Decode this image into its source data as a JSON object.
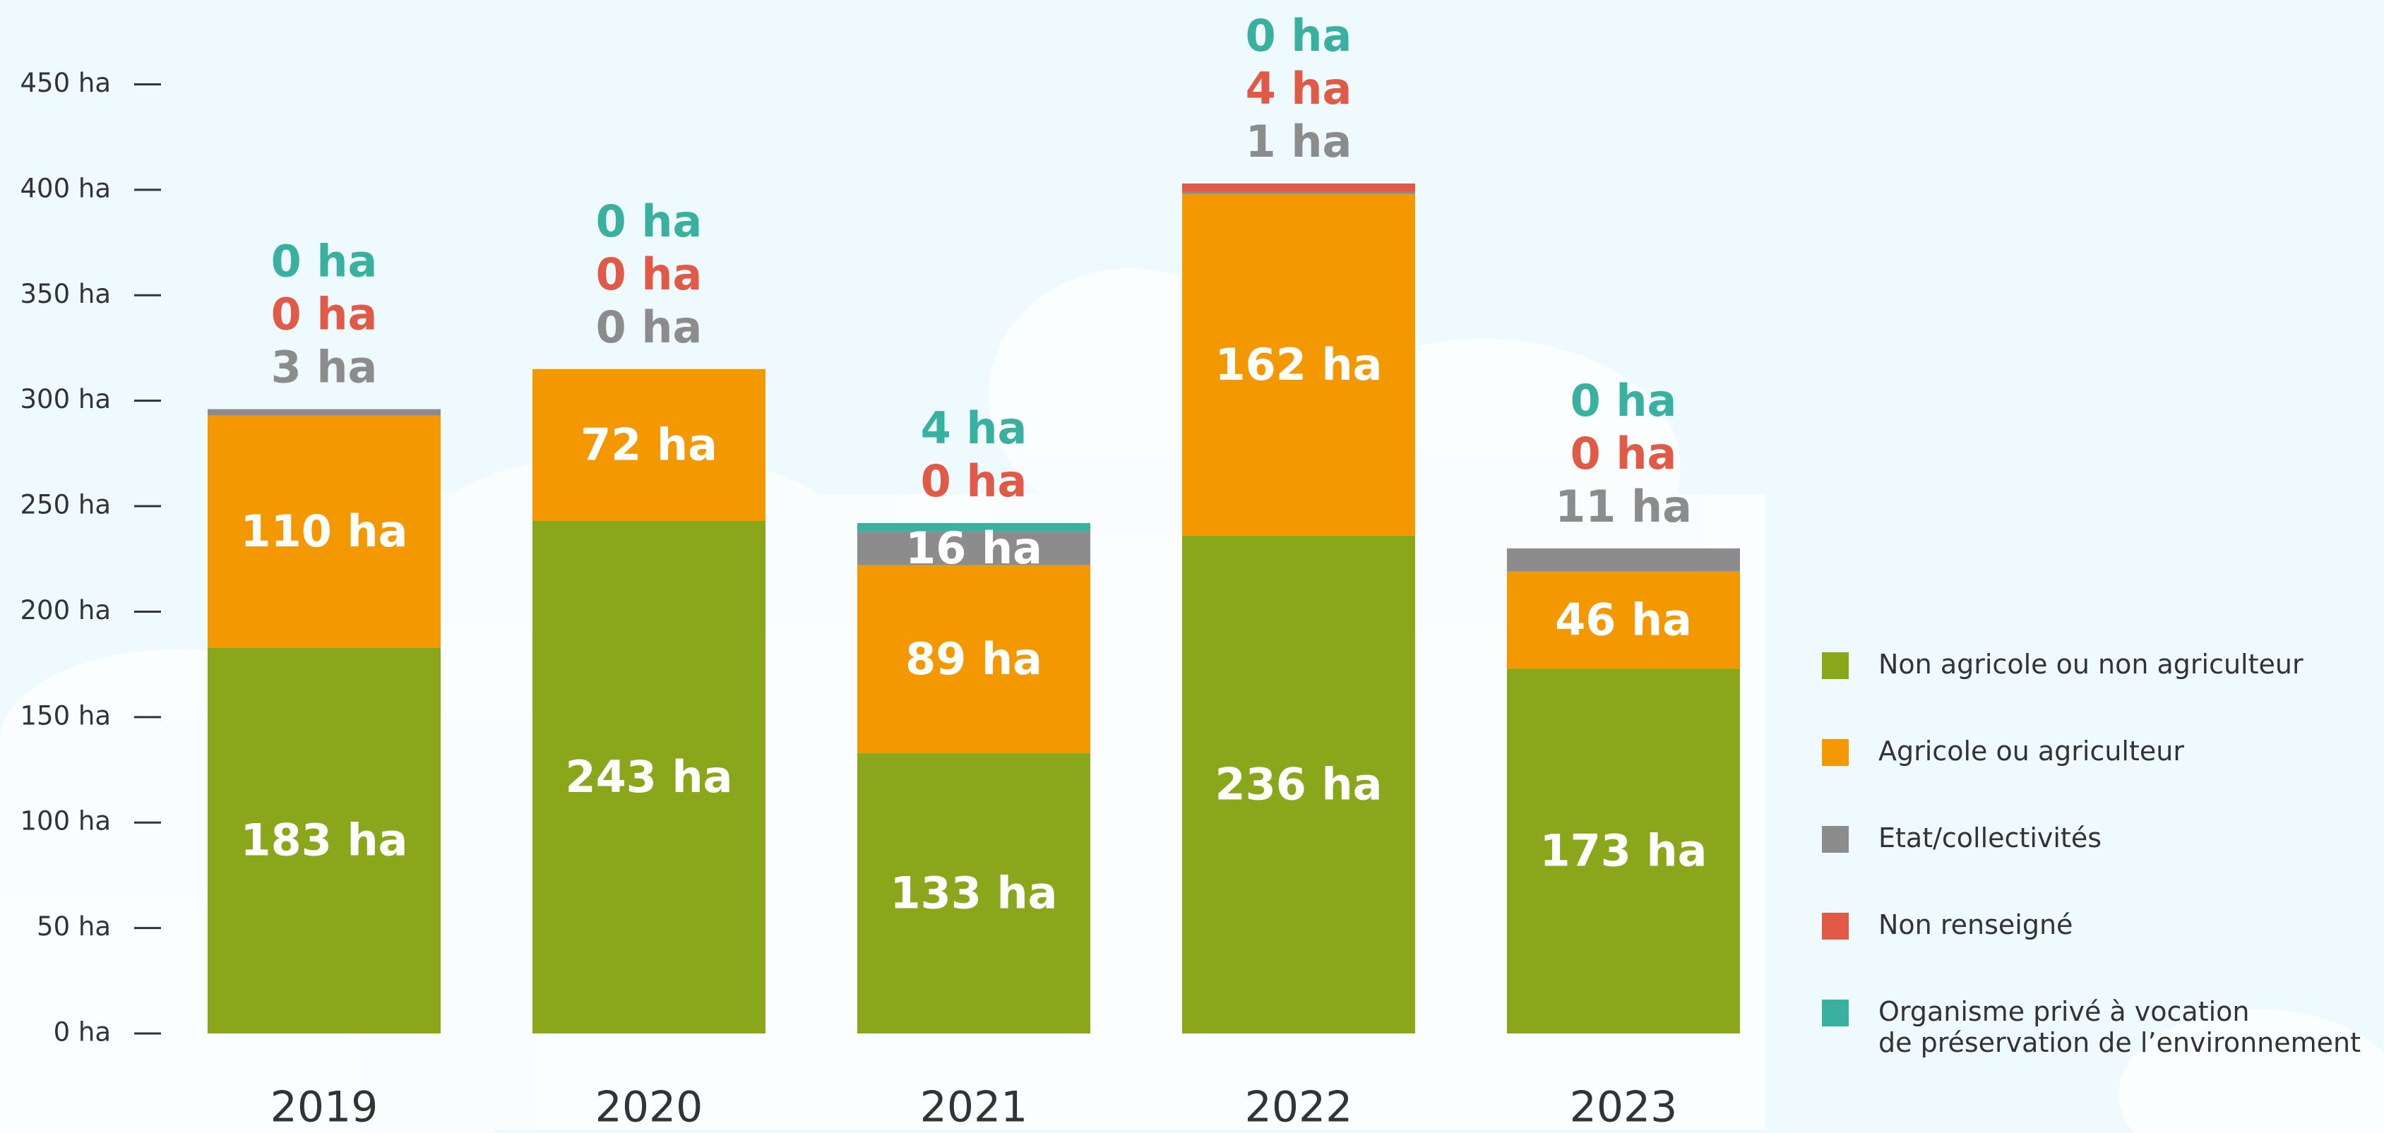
{
  "chart_data": {
    "type": "stacked_bar",
    "categories": [
      "2019",
      "2020",
      "2021",
      "2022",
      "2023"
    ],
    "series": [
      {
        "name": "Non agricole ou non agriculteur",
        "color": "#8aa61a",
        "values": [
          183,
          243,
          133,
          236,
          173
        ],
        "value_labels": [
          "183 ha",
          "243 ha",
          "133 ha",
          "236 ha",
          "173 ha"
        ]
      },
      {
        "name": "Agricole ou agriculteur",
        "color": "#f39800",
        "values": [
          110,
          72,
          89,
          162,
          46
        ],
        "value_labels": [
          "110 ha",
          "72 ha",
          "89 ha",
          "162 ha",
          "46 ha"
        ]
      },
      {
        "name": "Etat/collectivités",
        "color": "#8c8c8c",
        "values": [
          3,
          0,
          16,
          1,
          11
        ],
        "value_labels": [
          "3 ha",
          "0 ha",
          "16 ha",
          "1 ha",
          "11 ha"
        ]
      },
      {
        "name": "Non renseigné",
        "color": "#e05a47",
        "values": [
          0,
          0,
          0,
          4,
          0
        ],
        "value_labels": [
          "0 ha",
          "0 ha",
          "0 ha",
          "4 ha",
          "0 ha"
        ]
      },
      {
        "name": "Organisme privé à vocation\nde préservation de l’environnement",
        "color": "#3ab0a0",
        "values": [
          0,
          0,
          4,
          0,
          0
        ],
        "value_labels": [
          "0 ha",
          "0 ha",
          "4 ha",
          "0 ha",
          "0 ha"
        ]
      }
    ],
    "ylim": [
      0,
      490
    ],
    "yticks": [
      {
        "value": 0,
        "label": "0 ha"
      },
      {
        "value": 50,
        "label": "50 ha"
      },
      {
        "value": 100,
        "label": "100 ha"
      },
      {
        "value": 150,
        "label": "150 ha"
      },
      {
        "value": 200,
        "label": "200 ha"
      },
      {
        "value": 250,
        "label": "250 ha"
      },
      {
        "value": 300,
        "label": "300 ha"
      },
      {
        "value": 350,
        "label": "350 ha"
      },
      {
        "value": 400,
        "label": "400 ha"
      },
      {
        "value": 450,
        "label": "450 ha"
      }
    ],
    "legend": "right"
  }
}
